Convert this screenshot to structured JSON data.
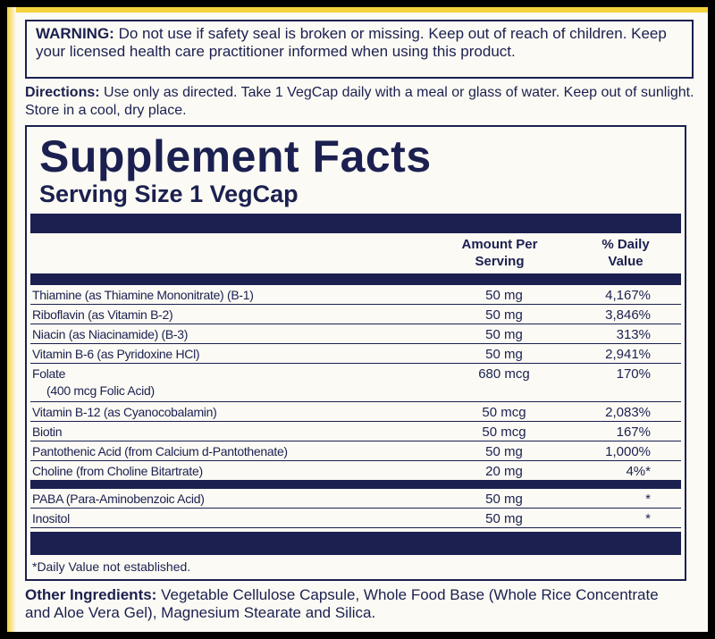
{
  "warning": {
    "label": "WARNING:",
    "text": "Do not use if safety seal is broken or missing. Keep out of reach of children. Keep your licensed health care practitioner informed when using this product."
  },
  "directions": {
    "label": "Directions:",
    "text": "Use only as directed. Take 1 VegCap daily with a meal or glass of water.  Keep out of sunlight. Store in a cool, dry place."
  },
  "facts": {
    "title": "Supplement Facts",
    "serving_size": "Serving Size 1 VegCap",
    "header": {
      "amount": "Amount Per Serving",
      "dv": "% Daily Value"
    },
    "rows": [
      {
        "name": "Thiamine (as Thiamine Mononitrate) (B-1)",
        "amount": "50 mg",
        "dv": "4,167%"
      },
      {
        "name": "Riboflavin (as Vitamin B-2)",
        "amount": "50 mg",
        "dv": "3,846%"
      },
      {
        "name": "Niacin (as Niacinamide) (B-3)",
        "amount": "50 mg",
        "dv": "313%"
      },
      {
        "name": "Vitamin B-6 (as Pyridoxine HCl)",
        "amount": "50 mg",
        "dv": "2,941%"
      },
      {
        "name": "Folate",
        "sub": "(400 mcg Folic Acid)",
        "amount": "680 mcg",
        "dv": "170%"
      },
      {
        "name": "Vitamin B-12 (as Cyanocobalamin)",
        "amount": "50 mcg",
        "dv": "2,083%"
      },
      {
        "name": "Biotin",
        "amount": "50 mcg",
        "dv": "167%"
      },
      {
        "name": "Pantothenic Acid (from Calcium d-Pantothenate)",
        "amount": "50 mg",
        "dv": "1,000%"
      },
      {
        "name": "Choline (from Choline Bitartrate)",
        "amount": "20 mg",
        "dv": "4%*"
      }
    ],
    "other_rows": [
      {
        "name": "PABA (Para-Aminobenzoic Acid)",
        "amount": "50 mg",
        "dv": "*"
      },
      {
        "name": "Inositol",
        "amount": "50 mg",
        "dv": "*"
      }
    ],
    "footnote": "*Daily Value not established."
  },
  "other_ingredients": {
    "label": "Other Ingredients:",
    "text": "Vegetable Cellulose Capsule, Whole Food Base (Whole Rice Concentrate and Aloe Vera Gel), Magnesium Stearate and Silica."
  }
}
